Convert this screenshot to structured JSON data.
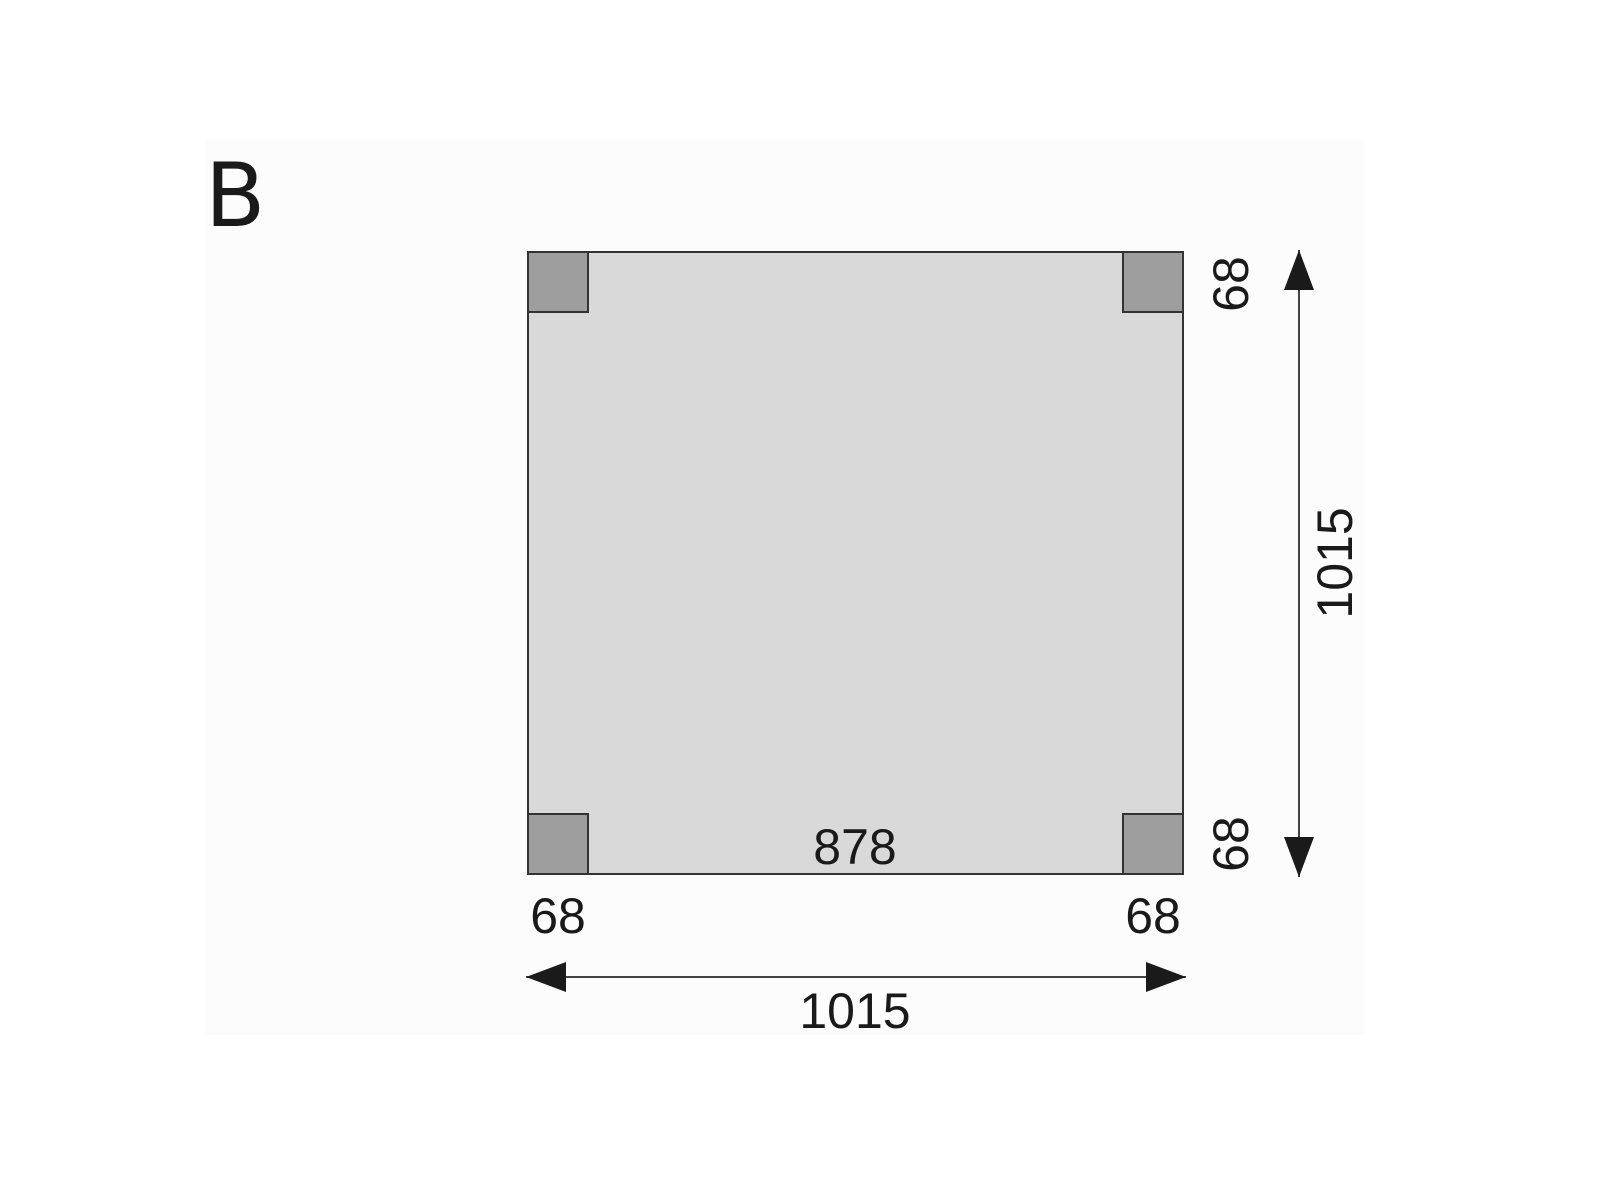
{
  "panel_label": "B",
  "colors": {
    "outer_fill": "#d9d9d9",
    "corner_fill": "#9e9e9e",
    "stroke": "#333333",
    "background": "#fcfcfc"
  },
  "dimensions": {
    "overall_width": "1015",
    "overall_height": "1015",
    "inner_span": "878",
    "corner_bottom_left": "68",
    "corner_bottom_right": "68",
    "corner_right_top": "68",
    "corner_right_bottom": "68"
  }
}
